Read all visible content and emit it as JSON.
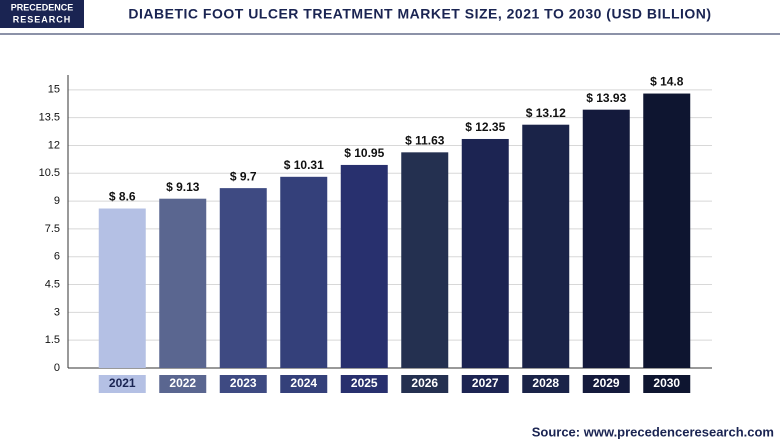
{
  "chart_data": {
    "type": "bar",
    "title": "DIABETIC FOOT ULCER TREATMENT MARKET SIZE, 2021 TO 2030 (USD BILLION)",
    "logo": [
      "PRECEDENCE",
      "RESEARCH"
    ],
    "source": "Source: www.precedenceresearch.com",
    "categories": [
      "2021",
      "2022",
      "2023",
      "2024",
      "2025",
      "2026",
      "2027",
      "2028",
      "2029",
      "2030"
    ],
    "values": [
      8.6,
      9.13,
      9.7,
      10.31,
      10.95,
      11.63,
      12.35,
      13.12,
      13.93,
      14.8
    ],
    "value_labels": [
      "$ 8.6",
      "$ 9.13",
      "$ 9.7",
      "$ 10.31",
      "$ 10.95",
      "$ 11.63",
      "$ 12.35",
      "$ 13.12",
      "$ 13.93",
      "$ 14.8"
    ],
    "colors": [
      "#b4c0e4",
      "#5a6690",
      "#3e4a82",
      "#34407a",
      "#28306e",
      "#243050",
      "#1c2452",
      "#1a2348",
      "#141a3c",
      "#0e1530"
    ],
    "ylim": [
      0,
      15.8
    ],
    "yticks": [
      0,
      1.5,
      3,
      4.5,
      6,
      7.5,
      9,
      10.5,
      12,
      13.5,
      15
    ],
    "grid": true
  }
}
